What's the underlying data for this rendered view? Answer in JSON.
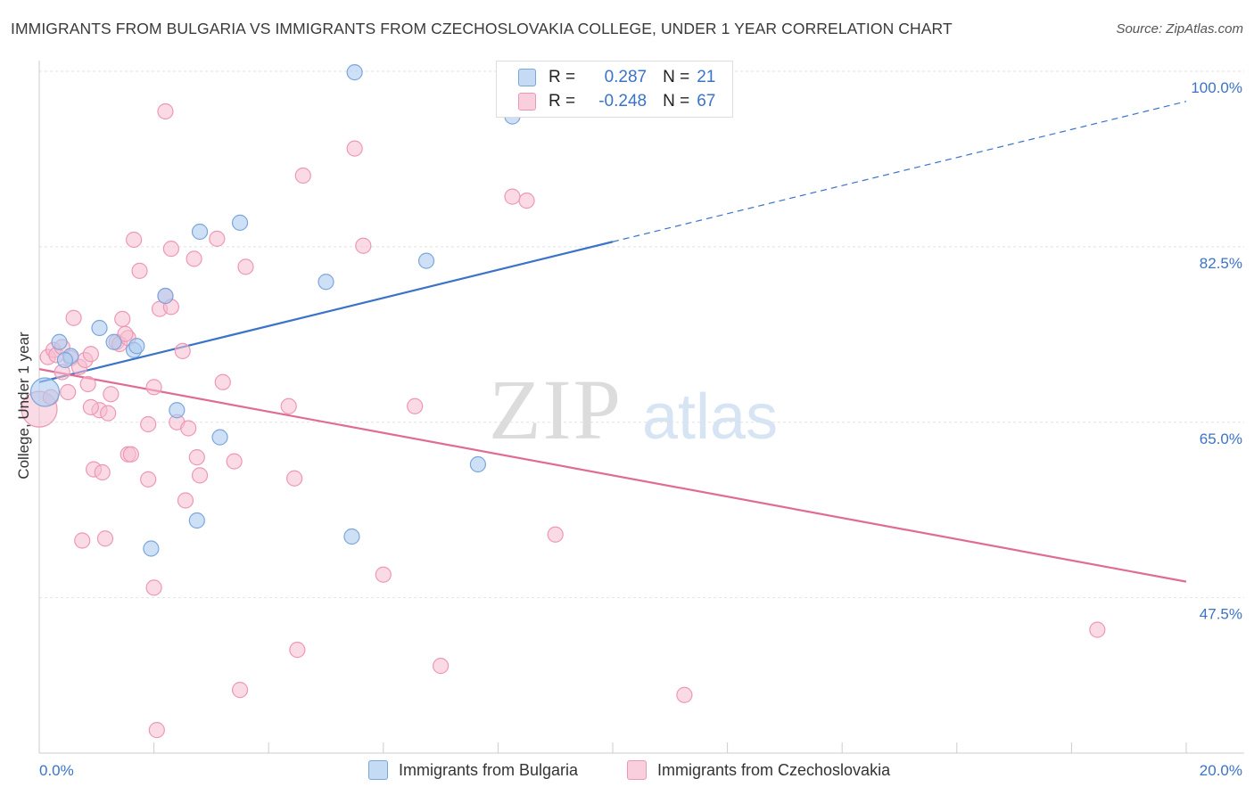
{
  "title": "IMMIGRANTS FROM BULGARIA VS IMMIGRANTS FROM CZECHOSLOVAKIA COLLEGE, UNDER 1 YEAR CORRELATION CHART",
  "source": "Source: ZipAtlas.com",
  "watermark": {
    "zip": "ZIP",
    "atlas": "atlas"
  },
  "legend": {
    "r_label": "R =",
    "n_label": "N =",
    "rows": [
      {
        "r": "0.287",
        "n": "21"
      },
      {
        "r": "-0.248",
        "n": "67"
      }
    ]
  },
  "colors": {
    "bulgaria_fill": "#aecbf0",
    "bulgaria_stroke": "#7aa6dd",
    "bulgaria_line": "#3a73c8",
    "czech_fill": "#f6bdd0",
    "czech_stroke": "#ee97b5",
    "czech_line": "#e06c96",
    "grid": "#e2e2e2",
    "tick_text": "#3a73c8"
  },
  "chart_data": {
    "type": "scatter",
    "title": "IMMIGRANTS FROM BULGARIA VS IMMIGRANTS FROM CZECHOSLOVAKIA COLLEGE, UNDER 1 YEAR CORRELATION CHART",
    "xlabel": "",
    "ylabel": "College, Under 1 year",
    "xlim": [
      0,
      20
    ],
    "ylim": [
      32,
      100
    ],
    "x_tick_labels": [
      "0.0%",
      "20.0%"
    ],
    "y_ticks": [
      47.5,
      65.0,
      82.5,
      100.0
    ],
    "y_tick_labels": [
      "47.5%",
      "65.0%",
      "82.5%",
      "100.0%"
    ],
    "grid": true,
    "legend_position": "top-center",
    "series": [
      {
        "name": "Immigrants from Bulgaria",
        "R": 0.287,
        "N": 21,
        "trend": {
          "x0": 0,
          "y0": 69.0,
          "x1": 10,
          "y1": 83.0,
          "dashed_to_x": 20,
          "dashed_to_y": 97.0
        },
        "points": [
          [
            0.1,
            68.0
          ],
          [
            0.35,
            73.0
          ],
          [
            0.55,
            71.6
          ],
          [
            0.45,
            71.2
          ],
          [
            1.05,
            74.4
          ],
          [
            1.3,
            73.0
          ],
          [
            1.65,
            72.2
          ],
          [
            1.7,
            72.6
          ],
          [
            2.2,
            77.6
          ],
          [
            2.4,
            66.2
          ],
          [
            2.8,
            84.0
          ],
          [
            3.15,
            63.5
          ],
          [
            3.5,
            84.9
          ],
          [
            5.0,
            79.0
          ],
          [
            5.45,
            53.6
          ],
          [
            5.5,
            99.9
          ],
          [
            6.75,
            81.1
          ],
          [
            7.65,
            60.8
          ],
          [
            8.25,
            95.5
          ],
          [
            1.95,
            52.4
          ],
          [
            2.75,
            55.2
          ]
        ]
      },
      {
        "name": "Immigrants from Czechoslovakia",
        "R": -0.248,
        "N": 67,
        "trend": {
          "x0": 0,
          "y0": 70.3,
          "x1": 20,
          "y1": 49.1
        },
        "points": [
          [
            0.0,
            66.3
          ],
          [
            0.15,
            71.5
          ],
          [
            0.25,
            72.2
          ],
          [
            0.3,
            71.7
          ],
          [
            0.4,
            72.5
          ],
          [
            0.4,
            70.0
          ],
          [
            0.5,
            68.0
          ],
          [
            0.55,
            71.4
          ],
          [
            0.6,
            75.4
          ],
          [
            0.7,
            70.5
          ],
          [
            0.75,
            53.2
          ],
          [
            0.8,
            71.2
          ],
          [
            0.85,
            68.8
          ],
          [
            0.9,
            71.8
          ],
          [
            0.95,
            60.3
          ],
          [
            1.05,
            66.2
          ],
          [
            1.1,
            60.0
          ],
          [
            1.15,
            53.4
          ],
          [
            1.2,
            65.9
          ],
          [
            1.25,
            67.8
          ],
          [
            1.35,
            73.0
          ],
          [
            1.4,
            72.8
          ],
          [
            1.45,
            75.3
          ],
          [
            1.55,
            73.4
          ],
          [
            1.55,
            61.8
          ],
          [
            1.6,
            61.8
          ],
          [
            1.65,
            83.2
          ],
          [
            1.75,
            80.1
          ],
          [
            1.9,
            59.3
          ],
          [
            1.9,
            64.8
          ],
          [
            2.0,
            68.5
          ],
          [
            2.0,
            48.5
          ],
          [
            2.1,
            76.3
          ],
          [
            2.2,
            96.0
          ],
          [
            2.2,
            77.6
          ],
          [
            2.3,
            82.3
          ],
          [
            2.3,
            76.5
          ],
          [
            2.4,
            65.0
          ],
          [
            2.5,
            72.1
          ],
          [
            2.55,
            57.2
          ],
          [
            2.6,
            64.4
          ],
          [
            2.7,
            81.3
          ],
          [
            2.75,
            61.5
          ],
          [
            2.8,
            59.7
          ],
          [
            3.1,
            83.3
          ],
          [
            3.2,
            69.0
          ],
          [
            3.4,
            61.1
          ],
          [
            3.5,
            38.3
          ],
          [
            3.6,
            80.5
          ],
          [
            4.35,
            66.6
          ],
          [
            4.45,
            59.4
          ],
          [
            4.5,
            42.3
          ],
          [
            4.6,
            89.6
          ],
          [
            5.5,
            92.3
          ],
          [
            5.65,
            82.6
          ],
          [
            6.0,
            49.8
          ],
          [
            6.55,
            66.6
          ],
          [
            7.0,
            40.7
          ],
          [
            8.25,
            87.5
          ],
          [
            8.5,
            87.1
          ],
          [
            9.0,
            53.8
          ],
          [
            11.25,
            37.8
          ],
          [
            18.45,
            44.3
          ],
          [
            2.05,
            34.3
          ],
          [
            0.9,
            66.5
          ],
          [
            1.5,
            73.8
          ],
          [
            0.2,
            67.5
          ]
        ]
      }
    ]
  },
  "bottom_legend": [
    "Immigrants from Bulgaria",
    "Immigrants from Czechoslovakia"
  ]
}
